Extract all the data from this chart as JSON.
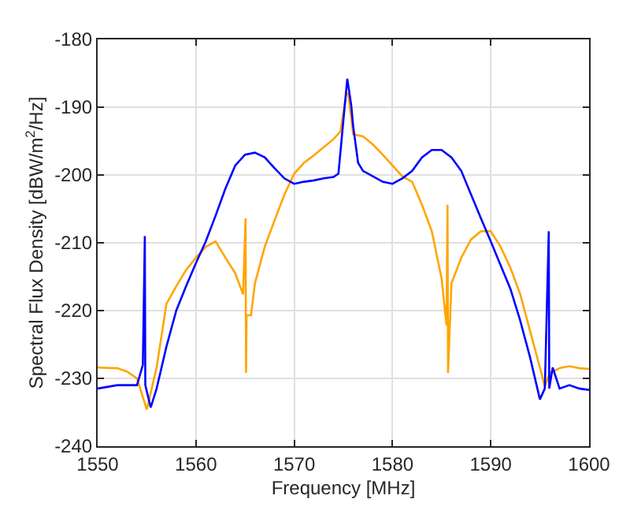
{
  "chart_data": {
    "type": "line",
    "xlabel": "Frequency [MHz]",
    "ylabel": "Spectral Flux Density [dBW/m$^{2}$/Hz]",
    "xlim": [
      1550,
      1600
    ],
    "xticks": [
      1550,
      1560,
      1570,
      1580,
      1590,
      1600
    ],
    "ylim": [
      -240,
      -180
    ],
    "yticks": [
      -240,
      -230,
      -220,
      -210,
      -200,
      -190,
      -180
    ],
    "grid": true,
    "marker": "none",
    "line_style": "solid",
    "series": [
      {
        "color": "#ffa500",
        "x": [
          1550,
          1552,
          1553,
          1554,
          1555,
          1556,
          1557,
          1558,
          1559,
          1560,
          1561,
          1562,
          1563,
          1564,
          1564.8,
          1565.05,
          1565.1,
          1565.15,
          1565.6,
          1566,
          1567,
          1568,
          1569,
          1570,
          1571,
          1572,
          1573,
          1574,
          1574.7,
          1575.3,
          1575.5,
          1576,
          1577,
          1578,
          1579,
          1580,
          1581,
          1582,
          1583,
          1584,
          1585,
          1585.5,
          1585.6,
          1585.65,
          1586,
          1587,
          1588,
          1589,
          1590,
          1591,
          1592,
          1593,
          1594,
          1595,
          1595.5,
          1596,
          1597,
          1598,
          1599,
          1600
        ],
        "values": [
          -228.4,
          -228.5,
          -229,
          -230,
          -234.6,
          -228.4,
          -219,
          -216.4,
          -214,
          -212.2,
          -210.6,
          -209.8,
          -212.2,
          -214.5,
          -217.6,
          -206.4,
          -229.2,
          -220.7,
          -220.7,
          -216,
          -210.6,
          -206.7,
          -202.9,
          -199.8,
          -198.2,
          -197.1,
          -195.9,
          -194.7,
          -193.6,
          -188,
          -188,
          -194,
          -194.3,
          -195.5,
          -197,
          -198.6,
          -200.2,
          -201,
          -204.4,
          -208.3,
          -215.3,
          -222.2,
          -204.4,
          -229.2,
          -216,
          -212.2,
          -209.5,
          -208.3,
          -208.3,
          -210.6,
          -213.7,
          -217.6,
          -223,
          -228.4,
          -231.2,
          -229.2,
          -228.5,
          -228.2,
          -228.5,
          -228.6
        ]
      },
      {
        "color": "#0000ff",
        "x": [
          1550,
          1552,
          1554,
          1554.6,
          1554.8,
          1554.85,
          1555.4,
          1556,
          1557,
          1558,
          1559,
          1560,
          1561,
          1562,
          1563,
          1564,
          1565,
          1566,
          1567,
          1568,
          1569,
          1570,
          1571,
          1572,
          1573,
          1574,
          1574.5,
          1575,
          1575.4,
          1575.8,
          1576,
          1576.5,
          1577,
          1578,
          1579,
          1580,
          1581,
          1582,
          1583,
          1584,
          1585,
          1586,
          1587,
          1588,
          1589,
          1590,
          1591,
          1592,
          1593,
          1594,
          1595,
          1595.5,
          1595.9,
          1595.95,
          1596.3,
          1597,
          1598,
          1599,
          1600
        ],
        "values": [
          -231.5,
          -231,
          -231,
          -228,
          -209,
          -231,
          -234.3,
          -231.5,
          -225.3,
          -220,
          -216.4,
          -213,
          -209.8,
          -206,
          -202,
          -198.6,
          -197,
          -196.7,
          -197.4,
          -199,
          -200.5,
          -201.3,
          -201,
          -200.8,
          -200.5,
          -200.3,
          -199.8,
          -192,
          -185.8,
          -189.7,
          -192.8,
          -198.2,
          -199.4,
          -200.2,
          -201,
          -201.3,
          -200.5,
          -199.4,
          -197.4,
          -196.3,
          -196.3,
          -197.4,
          -199.4,
          -202.9,
          -206.4,
          -209.8,
          -213.3,
          -216.8,
          -221.5,
          -226.9,
          -233.1,
          -231.5,
          -208.3,
          -231.5,
          -228.4,
          -231.5,
          -231,
          -231.5,
          -231.7
        ]
      }
    ]
  }
}
